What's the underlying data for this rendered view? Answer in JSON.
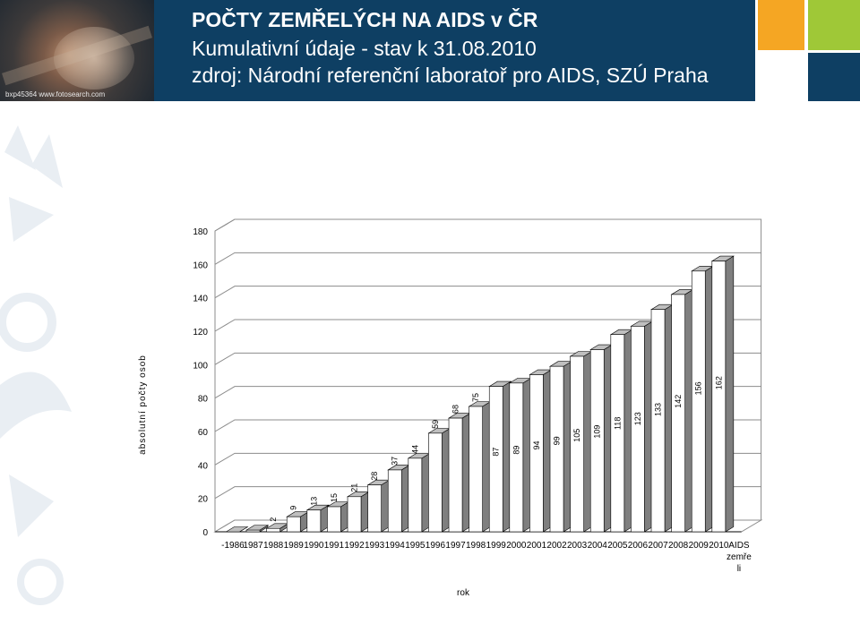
{
  "header": {
    "title": "POČTY ZEMŘELÝCH NA AIDS v ČR",
    "subtitle1": "Kumulativní údaje - stav k 31.08.2010",
    "subtitle2": "zdroj: Národní referenční laboratoř pro AIDS, SZÚ Praha",
    "photo_watermark": "bxp45364 www.fotosearch.com"
  },
  "colors": {
    "header_band": "#0e3f63",
    "accent_orange": "#f5a623",
    "accent_green": "#9fc837",
    "bar_front": "#ffffff",
    "bar_side": "#7f7f7f",
    "bar_top": "#bfbfbf"
  },
  "chart_data": {
    "type": "bar",
    "style": "3d",
    "categories": [
      "-1986",
      "1987",
      "1988",
      "1989",
      "1990",
      "1991",
      "1992",
      "1993",
      "1994",
      "1995",
      "1996",
      "1997",
      "1998",
      "1999",
      "2000",
      "2001",
      "2002",
      "2003",
      "2004",
      "2005",
      "2006",
      "2007",
      "2008",
      "2009",
      "2010"
    ],
    "values": [
      0,
      1,
      2,
      9,
      13,
      15,
      21,
      28,
      37,
      44,
      59,
      68,
      75,
      87,
      89,
      94,
      99,
      105,
      109,
      118,
      123,
      133,
      142,
      156,
      162
    ],
    "data_labels": [
      "",
      "",
      "2",
      "9",
      "13",
      "15",
      "21",
      "28",
      "37",
      "44",
      "59",
      "68",
      "75",
      "87",
      "89",
      "94",
      "99",
      "105",
      "109",
      "118",
      "123",
      "133",
      "142",
      "156",
      "162"
    ],
    "extra_category_label": "AIDS zemře li",
    "xlabel": "rok",
    "ylabel": "absolutní počty osob",
    "ylim": [
      0,
      180
    ],
    "yticks": [
      "0",
      "20",
      "40",
      "60",
      "80",
      "100",
      "120",
      "140",
      "160",
      "180"
    ],
    "grid": true,
    "legend": "none"
  }
}
